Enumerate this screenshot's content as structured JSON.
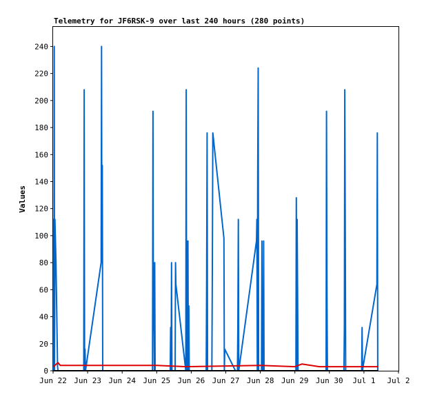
{
  "chart_data": {
    "type": "line",
    "title": "Telemetry for JF6RSK-9 over last 240 hours (280 points)",
    "ylabel": "Values",
    "xlabel": "",
    "ylim": [
      0,
      255
    ],
    "xlim": [
      0,
      240
    ],
    "yticks": [
      0,
      20,
      40,
      60,
      80,
      100,
      120,
      140,
      160,
      180,
      200,
      220,
      240
    ],
    "xticks": [
      {
        "label": "Jun 22",
        "t": 0
      },
      {
        "label": "Jun 23",
        "t": 24
      },
      {
        "label": "Jun 24",
        "t": 48
      },
      {
        "label": "Jun 25",
        "t": 72
      },
      {
        "label": "Jun 26",
        "t": 96
      },
      {
        "label": "Jun 27",
        "t": 120
      },
      {
        "label": "Jun 28",
        "t": 144
      },
      {
        "label": "Jun 29",
        "t": 168
      },
      {
        "label": "Jun 30",
        "t": 192
      },
      {
        "label": "Jul 1",
        "t": 216
      },
      {
        "label": "Jul 2",
        "t": 240
      }
    ],
    "grid": false,
    "series": [
      {
        "color": "#0066cc",
        "points": [
          [
            0.2,
            0
          ],
          [
            0.4,
            112
          ],
          [
            0.6,
            0
          ],
          [
            0.8,
            240
          ],
          [
            1.0,
            0
          ],
          [
            1.3,
            112
          ],
          [
            2.0,
            80
          ],
          [
            3.1,
            3
          ],
          [
            3.4,
            0
          ],
          [
            21.3,
            0
          ],
          [
            21.6,
            208
          ],
          [
            21.9,
            0
          ],
          [
            22.2,
            16
          ],
          [
            22.5,
            0
          ],
          [
            33.4,
            80
          ],
          [
            33.7,
            240
          ],
          [
            33.9,
            80
          ],
          [
            34.2,
            152
          ],
          [
            34.5,
            0
          ],
          [
            69.1,
            0
          ],
          [
            69.4,
            192
          ],
          [
            69.7,
            30
          ],
          [
            70.0,
            50
          ],
          [
            70.3,
            0
          ],
          [
            70.6,
            80
          ],
          [
            70.9,
            0
          ],
          [
            81.4,
            0
          ],
          [
            81.7,
            32
          ],
          [
            82.0,
            0
          ],
          [
            82.3,
            80
          ],
          [
            82.6,
            0
          ],
          [
            84.8,
            0
          ],
          [
            85.1,
            80
          ],
          [
            85.3,
            64
          ],
          [
            92.2,
            0
          ],
          [
            92.5,
            208
          ],
          [
            92.8,
            0
          ],
          [
            93.1,
            96
          ],
          [
            93.4,
            0
          ],
          [
            93.7,
            96
          ],
          [
            94.0,
            0
          ],
          [
            94.3,
            48
          ],
          [
            94.6,
            0
          ],
          [
            106.4,
            0
          ],
          [
            106.7,
            64
          ],
          [
            107.0,
            176
          ],
          [
            107.3,
            0
          ],
          [
            110.3,
            0
          ],
          [
            110.6,
            64
          ],
          [
            111.0,
            176
          ],
          [
            118.7,
            98
          ],
          [
            119.0,
            0
          ],
          [
            119.3,
            16
          ],
          [
            126.7,
            0
          ],
          [
            127.0,
            0
          ],
          [
            128.1,
            0
          ],
          [
            128.4,
            32
          ],
          [
            128.7,
            112
          ],
          [
            129.0,
            0
          ],
          [
            141.3,
            96
          ],
          [
            141.6,
            112
          ],
          [
            141.9,
            0
          ],
          [
            142.2,
            144
          ],
          [
            142.5,
            224
          ],
          [
            142.8,
            0
          ],
          [
            144.8,
            0
          ],
          [
            145.1,
            96
          ],
          [
            145.4,
            0
          ],
          [
            145.7,
            48
          ],
          [
            146.0,
            0
          ],
          [
            146.3,
            96
          ],
          [
            146.6,
            0
          ],
          [
            168.7,
            0
          ],
          [
            169.0,
            128
          ],
          [
            169.3,
            0
          ],
          [
            169.6,
            112
          ],
          [
            169.9,
            56
          ],
          [
            170.2,
            0
          ],
          [
            189.7,
            0
          ],
          [
            190.0,
            192
          ],
          [
            190.3,
            56
          ],
          [
            190.6,
            0
          ],
          [
            202.1,
            0
          ],
          [
            202.4,
            32
          ],
          [
            202.7,
            208
          ],
          [
            203.0,
            104
          ],
          [
            203.3,
            0
          ],
          [
            214.4,
            0
          ],
          [
            214.7,
            32
          ],
          [
            215.0,
            0
          ],
          [
            215.4,
            3
          ],
          [
            225.0,
            64
          ],
          [
            225.3,
            176
          ],
          [
            225.6,
            0
          ]
        ]
      },
      {
        "color": "#dd0000",
        "points": [
          [
            0.2,
            3
          ],
          [
            3.4,
            6
          ],
          [
            5.0,
            4
          ],
          [
            72,
            4
          ],
          [
            92,
            3
          ],
          [
            144,
            4
          ],
          [
            168,
            3
          ],
          [
            173,
            5
          ],
          [
            185,
            3
          ],
          [
            216,
            3
          ],
          [
            226,
            3
          ]
        ]
      },
      {
        "color": "#000000",
        "points": [
          [
            0.2,
            0
          ],
          [
            226,
            0
          ]
        ]
      }
    ]
  }
}
